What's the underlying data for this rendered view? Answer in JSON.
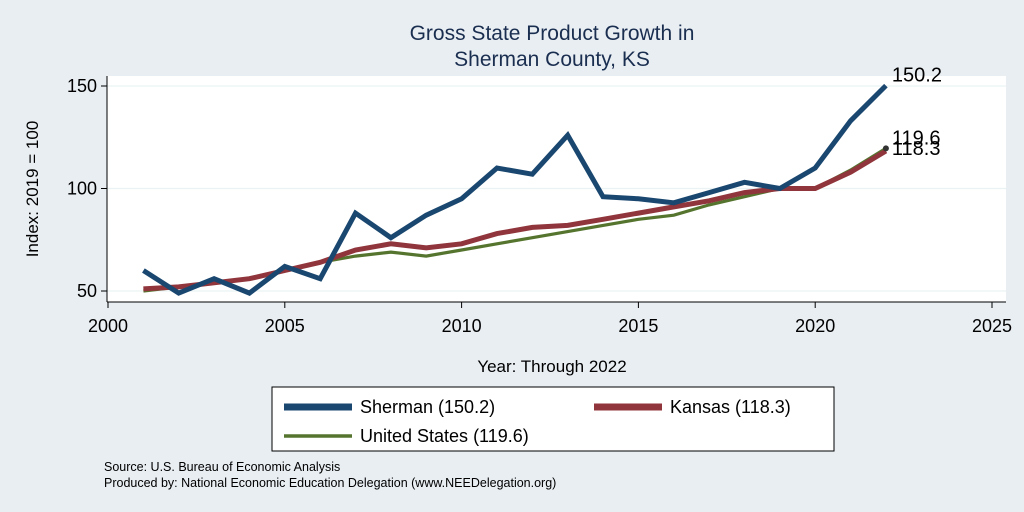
{
  "chart_data": {
    "type": "line",
    "title": [
      "Gross State Product Growth in",
      "Sherman County, KS"
    ],
    "xlabel": "Year: Through 2022",
    "ylabel": "Index: 2019 = 100",
    "xlim": [
      2000,
      2025
    ],
    "ylim": [
      45,
      155
    ],
    "xticks": [
      2000,
      2005,
      2010,
      2015,
      2020,
      2025
    ],
    "yticks": [
      50,
      100,
      150
    ],
    "grid": "horizontal",
    "legend_position": "bottom",
    "x": [
      2001,
      2002,
      2003,
      2004,
      2005,
      2006,
      2007,
      2008,
      2009,
      2010,
      2011,
      2012,
      2013,
      2014,
      2015,
      2016,
      2017,
      2018,
      2019,
      2020,
      2021,
      2022
    ],
    "series": [
      {
        "name": "Sherman",
        "legend_label": "Sherman  (150.2)",
        "color": "#1a476f",
        "values": [
          60,
          49,
          56,
          49,
          62,
          56,
          88,
          76,
          87,
          95,
          110,
          107,
          126,
          96,
          95,
          93,
          98,
          103,
          100,
          110,
          133,
          150.2
        ],
        "end_label": "150.2"
      },
      {
        "name": "Kansas",
        "legend_label": "Kansas (118.3)",
        "color": "#90353b",
        "values": [
          51,
          52,
          54,
          56,
          60,
          64,
          70,
          73,
          71,
          73,
          78,
          81,
          82,
          85,
          88,
          91,
          94,
          98,
          100,
          100,
          108,
          118.3
        ],
        "end_label": "118.3"
      },
      {
        "name": "United States",
        "legend_label": "United States (119.6)",
        "color": "#55752f",
        "values": [
          50,
          52,
          54,
          56,
          60,
          64,
          67,
          69,
          67,
          70,
          73,
          76,
          79,
          82,
          85,
          87,
          92,
          96,
          100,
          100,
          109,
          119.6
        ],
        "end_label": "119.6"
      }
    ]
  },
  "notes": {
    "source": "Source: U.S. Bureau of Economic Analysis",
    "produced_by": "Produced by: National Economic Education Delegation (www.NEEDelegation.org)"
  }
}
